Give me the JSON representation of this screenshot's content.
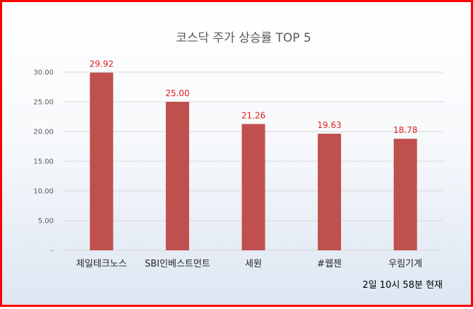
{
  "chart_data": {
    "type": "bar",
    "title": "코스닥 주가 상승률 TOP 5",
    "categories": [
      "제일테크노스",
      "SBI인베스트먼트",
      "세원",
      "#웹젠",
      "우림기계"
    ],
    "values": [
      29.92,
      25.0,
      21.26,
      19.63,
      18.78
    ],
    "data_labels": [
      "29.92",
      "25.00",
      "21.26",
      "19.63",
      "18.78"
    ],
    "y_ticks": [
      {
        "value": 0,
        "label": "-"
      },
      {
        "value": 5,
        "label": "5.00"
      },
      {
        "value": 10,
        "label": "10.00"
      },
      {
        "value": 15,
        "label": "15.00"
      },
      {
        "value": 20,
        "label": "20.00"
      },
      {
        "value": 25,
        "label": "25.00"
      },
      {
        "value": 30,
        "label": "30.00"
      }
    ],
    "ylim": [
      0,
      30
    ],
    "grid": true,
    "legend": "none",
    "bar_color": "#c0504d",
    "label_color": "#e0201e"
  },
  "footnote": "2일 10시  58분 현재"
}
